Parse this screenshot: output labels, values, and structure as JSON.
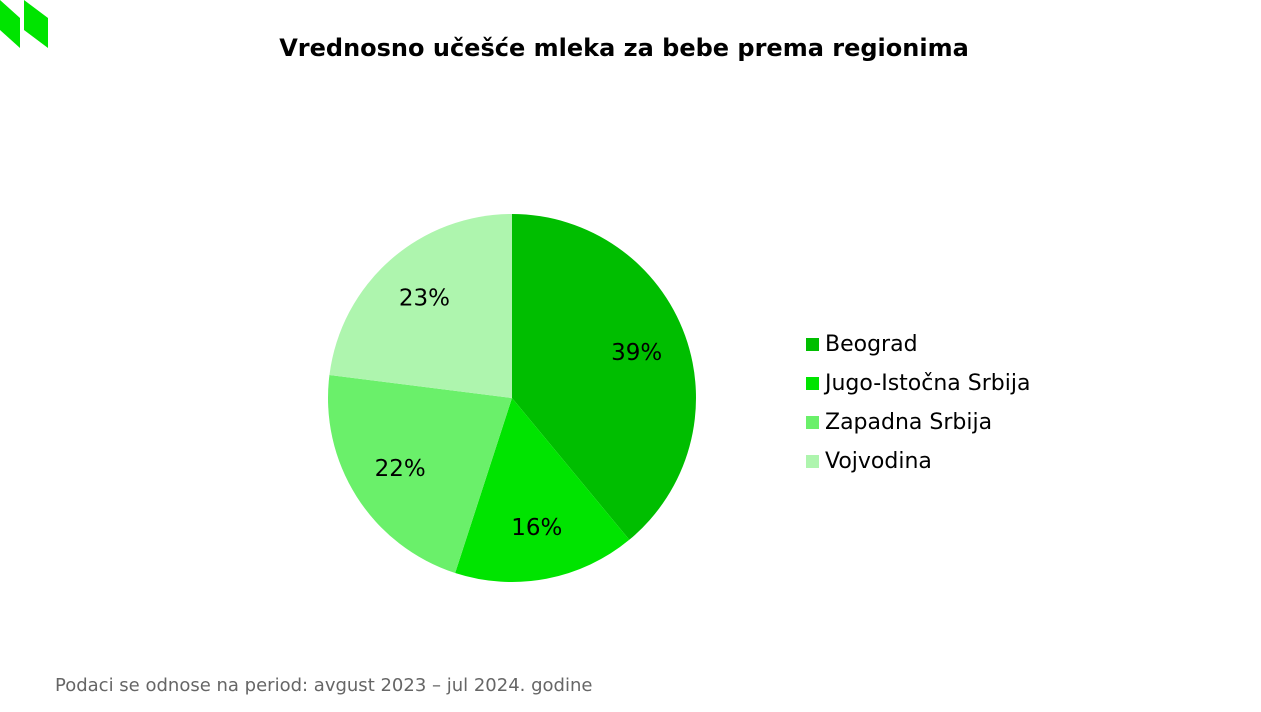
{
  "chart_data": {
    "type": "pie",
    "title": "Vrednosno učešće mleka za bebe prema regionima",
    "categories": [
      "Beograd",
      "Jugo-Istočna Srbija",
      "Zapadna Srbija",
      "Vojvodina"
    ],
    "values": [
      39,
      16,
      22,
      23
    ],
    "value_labels": [
      "39%",
      "16%",
      "22%",
      "23%"
    ],
    "colors": [
      "#00be00",
      "#00e400",
      "#6af06a",
      "#aef5ae"
    ],
    "legend_position": "right",
    "start_angle": "top",
    "direction": "clockwise"
  },
  "footnote": "Podaci se odnose na period: avgust 2023 – jul 2024. godine",
  "logo_color": "#00e400"
}
